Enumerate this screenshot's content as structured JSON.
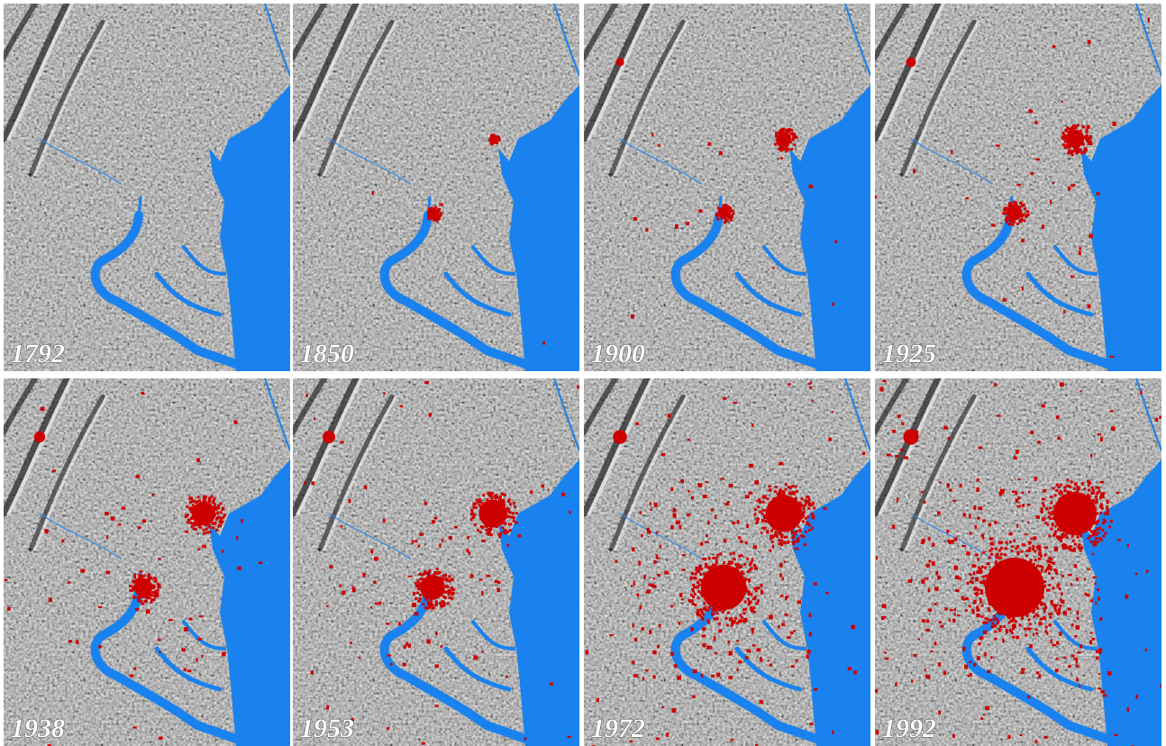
{
  "panels": [
    {
      "label": "1792"
    },
    {
      "label": "1850"
    },
    {
      "label": "1900"
    },
    {
      "label": "1925"
    },
    {
      "label": "1938"
    },
    {
      "label": "1953"
    },
    {
      "label": "1972"
    },
    {
      "label": "1992"
    }
  ]
}
